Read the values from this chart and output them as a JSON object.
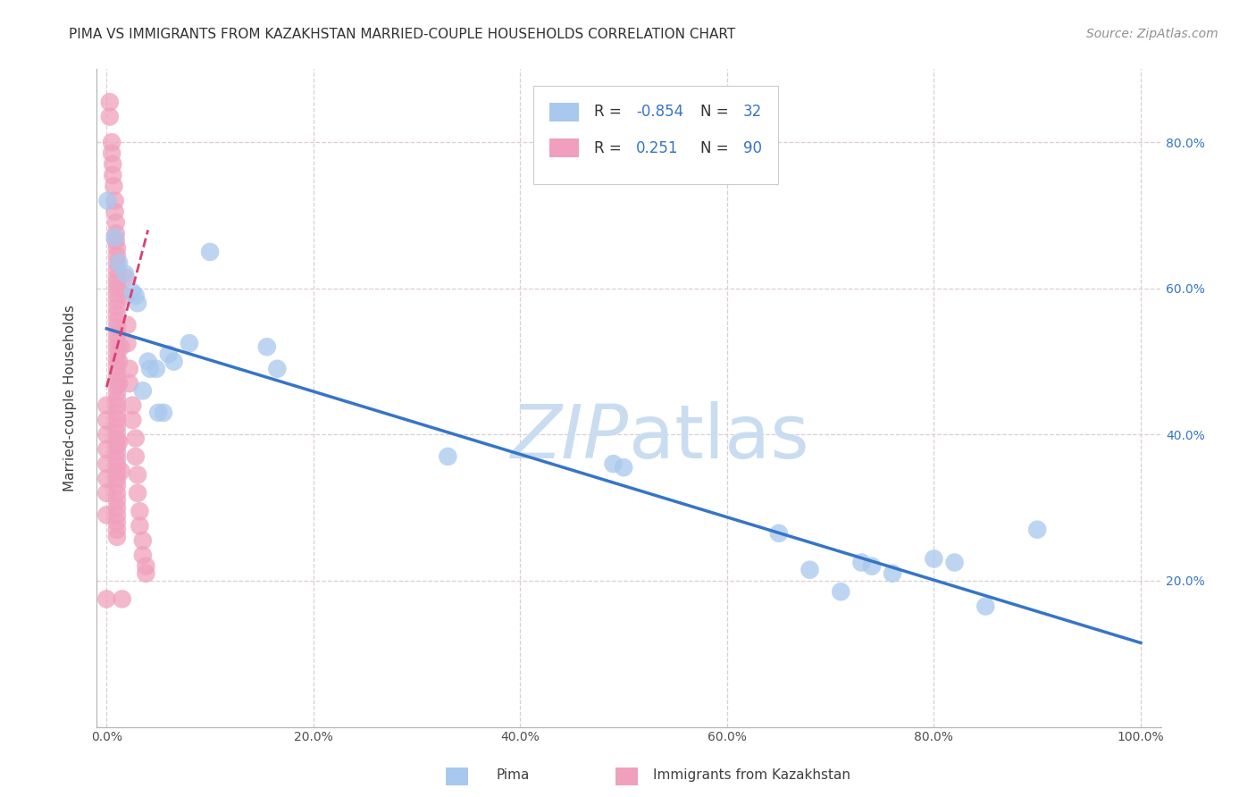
{
  "title": "PIMA VS IMMIGRANTS FROM KAZAKHSTAN MARRIED-COUPLE HOUSEHOLDS CORRELATION CHART",
  "source": "Source: ZipAtlas.com",
  "ylabel": "Married-couple Households",
  "watermark": "ZIPatlas",
  "legend": {
    "blue_R": "-0.854",
    "blue_N": "32",
    "pink_R": "0.251",
    "pink_N": "90"
  },
  "blue_dots": [
    [
      0.001,
      0.72
    ],
    [
      0.008,
      0.67
    ],
    [
      0.012,
      0.635
    ],
    [
      0.018,
      0.62
    ],
    [
      0.025,
      0.595
    ],
    [
      0.028,
      0.59
    ],
    [
      0.03,
      0.58
    ],
    [
      0.04,
      0.5
    ],
    [
      0.042,
      0.49
    ],
    [
      0.048,
      0.49
    ],
    [
      0.06,
      0.51
    ],
    [
      0.065,
      0.5
    ],
    [
      0.08,
      0.525
    ],
    [
      0.1,
      0.65
    ],
    [
      0.155,
      0.52
    ],
    [
      0.165,
      0.49
    ],
    [
      0.33,
      0.37
    ],
    [
      0.49,
      0.36
    ],
    [
      0.5,
      0.355
    ],
    [
      0.65,
      0.265
    ],
    [
      0.68,
      0.215
    ],
    [
      0.71,
      0.185
    ],
    [
      0.73,
      0.225
    ],
    [
      0.74,
      0.22
    ],
    [
      0.76,
      0.21
    ],
    [
      0.8,
      0.23
    ],
    [
      0.82,
      0.225
    ],
    [
      0.85,
      0.165
    ],
    [
      0.9,
      0.27
    ],
    [
      0.035,
      0.46
    ],
    [
      0.05,
      0.43
    ],
    [
      0.055,
      0.43
    ]
  ],
  "pink_dots": [
    [
      0.003,
      0.855
    ],
    [
      0.003,
      0.835
    ],
    [
      0.005,
      0.8
    ],
    [
      0.005,
      0.785
    ],
    [
      0.006,
      0.77
    ],
    [
      0.006,
      0.755
    ],
    [
      0.007,
      0.74
    ],
    [
      0.008,
      0.72
    ],
    [
      0.008,
      0.705
    ],
    [
      0.009,
      0.69
    ],
    [
      0.009,
      0.675
    ],
    [
      0.009,
      0.665
    ],
    [
      0.01,
      0.655
    ],
    [
      0.01,
      0.645
    ],
    [
      0.01,
      0.635
    ],
    [
      0.01,
      0.625
    ],
    [
      0.01,
      0.615
    ],
    [
      0.01,
      0.608
    ],
    [
      0.01,
      0.6
    ],
    [
      0.01,
      0.592
    ],
    [
      0.01,
      0.583
    ],
    [
      0.01,
      0.574
    ],
    [
      0.01,
      0.565
    ],
    [
      0.01,
      0.556
    ],
    [
      0.01,
      0.547
    ],
    [
      0.01,
      0.538
    ],
    [
      0.01,
      0.529
    ],
    [
      0.01,
      0.52
    ],
    [
      0.01,
      0.511
    ],
    [
      0.01,
      0.502
    ],
    [
      0.01,
      0.493
    ],
    [
      0.01,
      0.484
    ],
    [
      0.01,
      0.475
    ],
    [
      0.01,
      0.466
    ],
    [
      0.01,
      0.457
    ],
    [
      0.01,
      0.448
    ],
    [
      0.01,
      0.439
    ],
    [
      0.01,
      0.43
    ],
    [
      0.01,
      0.421
    ],
    [
      0.01,
      0.412
    ],
    [
      0.01,
      0.403
    ],
    [
      0.01,
      0.394
    ],
    [
      0.01,
      0.385
    ],
    [
      0.01,
      0.376
    ],
    [
      0.01,
      0.367
    ],
    [
      0.01,
      0.358
    ],
    [
      0.01,
      0.349
    ],
    [
      0.01,
      0.34
    ],
    [
      0.01,
      0.331
    ],
    [
      0.01,
      0.32
    ],
    [
      0.01,
      0.31
    ],
    [
      0.01,
      0.3
    ],
    [
      0.01,
      0.29
    ],
    [
      0.01,
      0.28
    ],
    [
      0.01,
      0.27
    ],
    [
      0.01,
      0.26
    ],
    [
      0.012,
      0.5
    ],
    [
      0.012,
      0.47
    ],
    [
      0.012,
      0.39
    ],
    [
      0.014,
      0.52
    ],
    [
      0.014,
      0.35
    ],
    [
      0.015,
      0.175
    ],
    [
      0.018,
      0.615
    ],
    [
      0.018,
      0.59
    ],
    [
      0.02,
      0.55
    ],
    [
      0.02,
      0.525
    ],
    [
      0.022,
      0.49
    ],
    [
      0.022,
      0.47
    ],
    [
      0.025,
      0.44
    ],
    [
      0.025,
      0.42
    ],
    [
      0.028,
      0.395
    ],
    [
      0.028,
      0.37
    ],
    [
      0.03,
      0.345
    ],
    [
      0.03,
      0.32
    ],
    [
      0.032,
      0.295
    ],
    [
      0.032,
      0.275
    ],
    [
      0.035,
      0.255
    ],
    [
      0.035,
      0.235
    ],
    [
      0.038,
      0.22
    ],
    [
      0.038,
      0.21
    ],
    [
      0.0,
      0.175
    ],
    [
      0.0,
      0.29
    ],
    [
      0.0,
      0.32
    ],
    [
      0.0,
      0.34
    ],
    [
      0.0,
      0.36
    ],
    [
      0.0,
      0.38
    ],
    [
      0.0,
      0.4
    ],
    [
      0.0,
      0.42
    ],
    [
      0.0,
      0.44
    ]
  ],
  "blue_line": {
    "x_start": 0.0,
    "y_start": 0.545,
    "x_end": 1.0,
    "y_end": 0.115
  },
  "pink_line": {
    "x_start": 0.0,
    "y_start": 0.465,
    "x_end": 0.04,
    "y_end": 0.68
  },
  "blue_color": "#A8C8EE",
  "pink_color": "#F0A0BC",
  "blue_line_color": "#3575C8",
  "pink_line_color": "#D84070",
  "grid_color": "#DDCCD8",
  "background_color": "#FFFFFF",
  "title_fontsize": 11,
  "source_fontsize": 10,
  "watermark_color": "#CADCF0",
  "xlim": [
    -0.01,
    1.02
  ],
  "ylim": [
    0.0,
    0.9
  ],
  "xticks": [
    0.0,
    0.2,
    0.4,
    0.6,
    0.8,
    1.0
  ],
  "yticks": [
    0.0,
    0.2,
    0.4,
    0.6,
    0.8
  ],
  "yticks_right": [
    0.2,
    0.4,
    0.6,
    0.8
  ],
  "xtick_labels": [
    "0.0%",
    "20.0%",
    "40.0%",
    "60.0%",
    "80.0%",
    "100.0%"
  ],
  "ytick_labels_right": [
    "20.0%",
    "40.0%",
    "60.0%",
    "80.0%"
  ]
}
